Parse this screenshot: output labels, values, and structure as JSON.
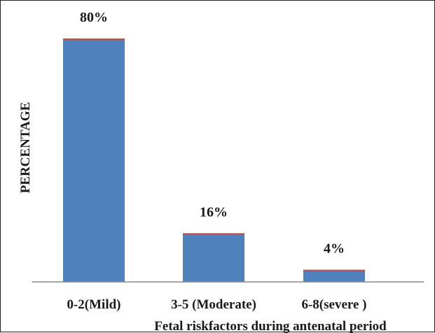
{
  "chart_data": {
    "type": "bar",
    "categories": [
      "0-2(Mild)",
      "3-5 (Moderate)",
      "6-8(severe )"
    ],
    "values": [
      80,
      16,
      4
    ],
    "data_labels": [
      "80%",
      "16%",
      "4%"
    ],
    "title": "",
    "xlabel": "Fetal riskfactors during antenatal period",
    "ylabel": "PERCENTAGE",
    "ylim": [
      0,
      80
    ],
    "grid": false,
    "legend": "none",
    "colors": {
      "bar": "#4f81bd",
      "bar_top": "#c0504d",
      "axis": "#888888"
    }
  }
}
